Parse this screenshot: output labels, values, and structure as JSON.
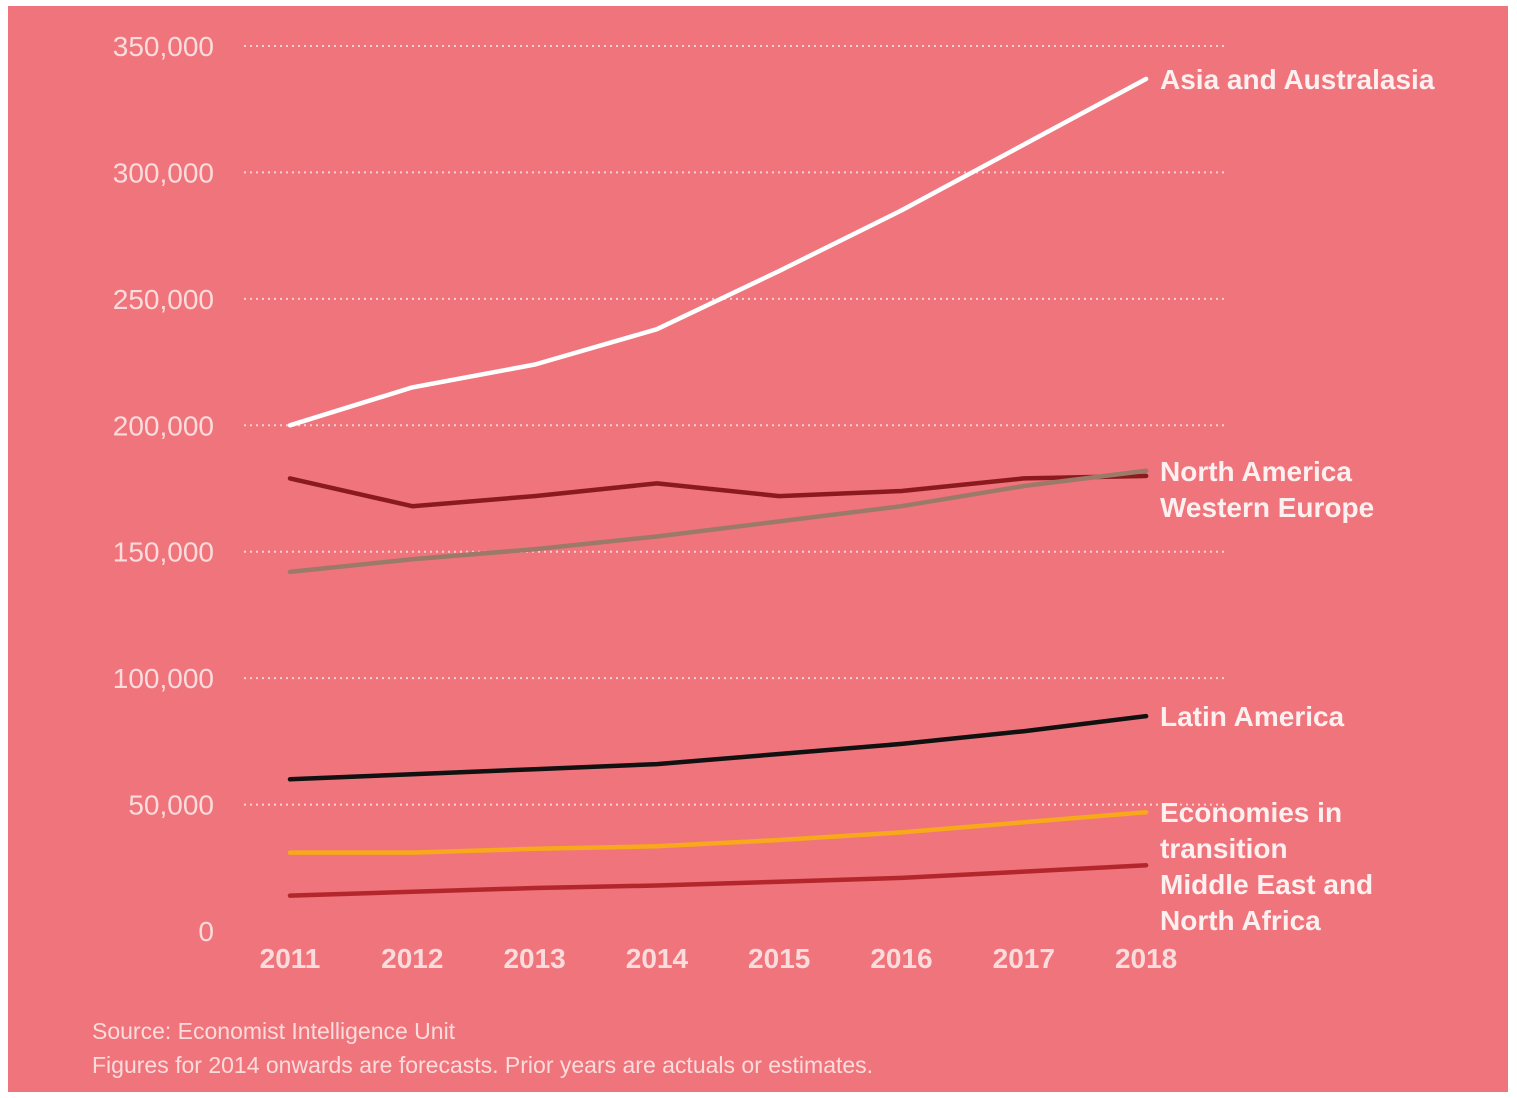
{
  "chart_data": {
    "type": "line",
    "title": "",
    "xlabel": "",
    "ylabel": "",
    "x": [
      "2011",
      "2012",
      "2013",
      "2014",
      "2015",
      "2016",
      "2017",
      "2018"
    ],
    "ylim": [
      0,
      350000
    ],
    "yticks": [
      {
        "value": 350000,
        "label": "350,000"
      },
      {
        "value": 300000,
        "label": "300,000"
      },
      {
        "value": 250000,
        "label": "250,000"
      },
      {
        "value": 200000,
        "label": "200,000"
      },
      {
        "value": 150000,
        "label": "150,000"
      },
      {
        "value": 100000,
        "label": "100,000"
      },
      {
        "value": 50000,
        "label": "50,000"
      },
      {
        "value": 0,
        "label": "0"
      }
    ],
    "grid": true,
    "series": [
      {
        "name": "Asia and Australasia",
        "color": "#ffffff",
        "labels": [
          "Asia and Australasia"
        ],
        "values": [
          200000,
          215000,
          224000,
          238000,
          261000,
          285000,
          311000,
          337000
        ]
      },
      {
        "name": "Western Europe",
        "color": "#8b1a1e",
        "labels": [
          "Western Europe"
        ],
        "values": [
          179000,
          168000,
          172000,
          177000,
          172000,
          174000,
          179000,
          180000
        ]
      },
      {
        "name": "North America",
        "color": "#9b7a6a",
        "labels": [
          "North America"
        ],
        "values": [
          142000,
          147000,
          151000,
          156000,
          162000,
          168000,
          176000,
          182000
        ]
      },
      {
        "name": "Latin America",
        "color": "#111111",
        "labels": [
          "Latin America"
        ],
        "values": [
          60000,
          62000,
          64000,
          66000,
          70000,
          74000,
          79000,
          85000
        ]
      },
      {
        "name": "Economies in transition",
        "color": "#f7a81b",
        "labels": [
          "Economies in",
          "transition"
        ],
        "values": [
          31000,
          31000,
          32500,
          33500,
          36000,
          39000,
          43000,
          47000
        ]
      },
      {
        "name": "Middle East and North Africa",
        "color": "#b3262c",
        "labels": [
          "Middle East and",
          "North Africa"
        ],
        "values": [
          14000,
          15500,
          17000,
          18000,
          19500,
          21000,
          23500,
          26000
        ]
      }
    ]
  },
  "notes": {
    "source": "Source: Economist Intelligence Unit",
    "forecast": "Figures for 2014 onwards are forecasts. Prior years are actuals or estimates."
  }
}
